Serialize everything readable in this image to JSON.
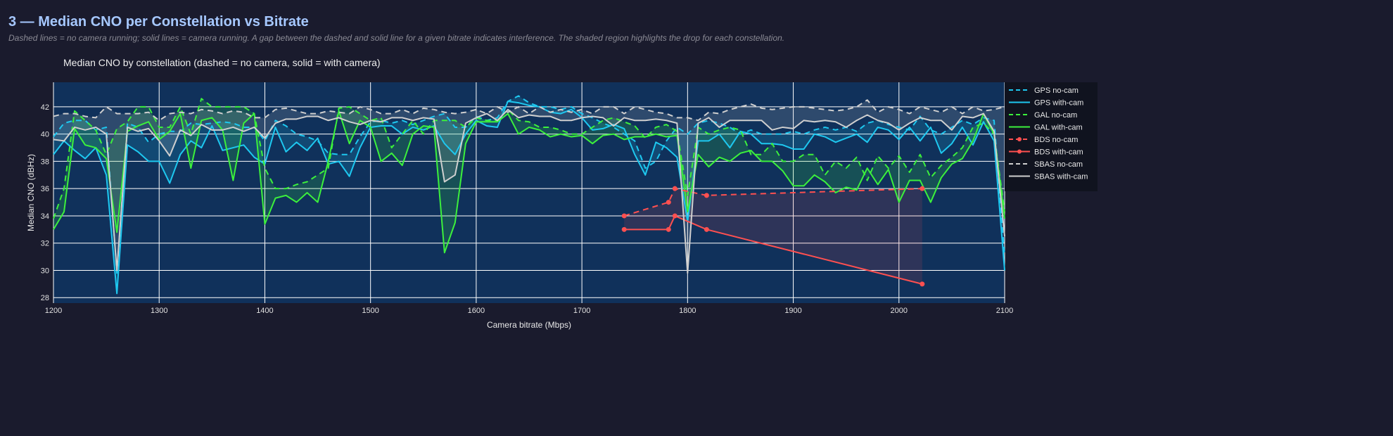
{
  "header": {
    "title": "3 — Median CNO per Constellation vs Bitrate",
    "subtitle": "Dashed lines = no camera running; solid lines = camera running. A gap between the dashed and solid line for a given bitrate indicates interference. The shaded region highlights the drop for each constellation."
  },
  "chart_data": {
    "type": "line",
    "title": "Median CNO by constellation  (dashed = no camera, solid = with camera)",
    "xlabel": "Camera bitrate (Mbps)",
    "ylabel": "Median CNO (dBHz)",
    "xlim": [
      1200,
      2100
    ],
    "ylim": [
      27.6,
      43.8
    ],
    "xticks": [
      1200,
      1300,
      1400,
      1500,
      1600,
      1700,
      1800,
      1900,
      2000,
      2100
    ],
    "yticks": [
      28,
      30,
      32,
      34,
      36,
      38,
      40,
      42
    ],
    "grid": true,
    "legend_position": "right",
    "x": [
      1200,
      1210,
      1220,
      1230,
      1240,
      1250,
      1260,
      1270,
      1280,
      1290,
      1300,
      1310,
      1320,
      1330,
      1340,
      1350,
      1360,
      1370,
      1380,
      1390,
      1400,
      1410,
      1420,
      1430,
      1440,
      1450,
      1460,
      1470,
      1480,
      1490,
      1500,
      1510,
      1520,
      1530,
      1540,
      1550,
      1560,
      1570,
      1580,
      1590,
      1600,
      1610,
      1620,
      1630,
      1640,
      1650,
      1660,
      1670,
      1680,
      1690,
      1700,
      1710,
      1720,
      1730,
      1740,
      1750,
      1760,
      1770,
      1780,
      1790,
      1800,
      1810,
      1820,
      1830,
      1840,
      1850,
      1860,
      1870,
      1880,
      1890,
      1900,
      1910,
      1920,
      1930,
      1940,
      1950,
      1960,
      1970,
      1980,
      1990,
      2000,
      2010,
      2020,
      2030,
      2040,
      2050,
      2060,
      2070,
      2080,
      2090,
      2100
    ],
    "series": [
      {
        "name": "GPS no-cam",
        "color": "#1ec8f0",
        "dash": true,
        "group": "GPS",
        "values": [
          39.8,
          40.8,
          41,
          41,
          40.3,
          40.5,
          29.8,
          40.8,
          40.5,
          39.4,
          40,
          40.2,
          40.2,
          40.8,
          40.7,
          40.8,
          40.9,
          40.8,
          40.5,
          40.5,
          39.5,
          41,
          40.6,
          40,
          39.8,
          39.5,
          38.6,
          38.5,
          38.5,
          39.8,
          40.9,
          41,
          40.8,
          41,
          40.7,
          41,
          41.3,
          41.5,
          40.5,
          40.5,
          41.3,
          41,
          41.2,
          42.4,
          42.8,
          42.3,
          42,
          42,
          41.8,
          42,
          41.5,
          41.2,
          40.8,
          40.5,
          40,
          39.5,
          37.5,
          38,
          39.5,
          40.5,
          40,
          40.8,
          41,
          40.8,
          40.5,
          40,
          40.3,
          40,
          40,
          40,
          40.2,
          40,
          40.3,
          40.5,
          40.3,
          40.5,
          40.2,
          40.8,
          41,
          40.7,
          40.5,
          40.3,
          41.3,
          40.3,
          40,
          40.5,
          41,
          40.7,
          41.2,
          41,
          31
        ]
      },
      {
        "name": "GPS with-cam",
        "color": "#1ec8f0",
        "dash": false,
        "group": "GPS",
        "values": [
          38.5,
          39.5,
          38.8,
          38.2,
          39,
          37,
          28.3,
          39.2,
          38.7,
          38,
          38,
          36.4,
          38.5,
          39.5,
          39,
          40.6,
          38.8,
          39,
          39.2,
          38.3,
          37.8,
          40.5,
          38.7,
          39.4,
          38.8,
          39.7,
          37.8,
          38,
          36.9,
          39,
          40.5,
          40.6,
          40.6,
          40,
          40.5,
          40.3,
          40.6,
          39.3,
          38.5,
          40,
          41,
          40.6,
          40.5,
          42.4,
          42.3,
          42.1,
          42,
          41.6,
          41.5,
          41.8,
          41.2,
          40.3,
          40.4,
          40.7,
          40.4,
          38.5,
          37,
          39.4,
          39,
          38.3,
          33.6,
          39.5,
          39.5,
          40,
          39,
          40.2,
          40,
          39.3,
          39.3,
          39.2,
          38.9,
          38.9,
          40,
          39.8,
          39.4,
          39.7,
          40,
          39.4,
          40.5,
          40.3,
          39.6,
          40.5,
          39.5,
          40.5,
          38.6,
          39.3,
          40.5,
          39.2,
          40.9,
          39.5,
          30
        ]
      },
      {
        "name": "GAL no-cam",
        "color": "#3cf03c",
        "dash": true,
        "group": "GAL",
        "values": [
          33.8,
          36,
          41.7,
          41,
          40.3,
          38.5,
          40.4,
          40.9,
          42,
          42,
          40.5,
          40.5,
          42,
          40,
          42.6,
          42,
          42,
          42,
          42,
          41.5,
          37.5,
          36,
          36,
          36.3,
          36.5,
          37,
          37.5,
          41.9,
          42,
          41.5,
          41,
          41.2,
          39,
          40,
          41,
          40,
          41,
          41,
          41,
          40.5,
          41.2,
          41,
          41,
          41.8,
          41,
          40.9,
          40.5,
          40.5,
          40.3,
          40,
          40,
          40.5,
          41,
          41.2,
          40.9,
          40.6,
          39.7,
          40.5,
          40.7,
          40.2,
          35.5,
          40.5,
          40,
          40.3,
          40.5,
          40.3,
          38.5,
          38.5,
          39.3,
          38,
          38,
          38.5,
          38.5,
          37,
          38,
          37.5,
          38.3,
          36.6,
          38.4,
          37.5,
          38.4,
          37.2,
          38.5,
          36.8,
          37.7,
          38.3,
          39,
          40.5,
          40.8,
          40,
          34.3
        ]
      },
      {
        "name": "GAL with-cam",
        "color": "#3cf03c",
        "dash": false,
        "group": "GAL",
        "values": [
          33,
          34.3,
          40.4,
          39.2,
          39,
          38.2,
          32.8,
          40.2,
          40.6,
          40.9,
          39.6,
          40.2,
          41.5,
          37.5,
          41,
          41.2,
          40.3,
          36.6,
          40.8,
          41.5,
          33.4,
          35.3,
          35.5,
          35,
          35.7,
          35,
          38,
          41.7,
          39.3,
          41,
          40.5,
          38,
          38.6,
          37.7,
          40,
          40.6,
          40.5,
          31.3,
          33.5,
          39.3,
          40.9,
          40.9,
          40.9,
          41.5,
          40,
          40.5,
          40.3,
          39.8,
          40,
          39.8,
          39.9,
          39.3,
          39.9,
          40,
          39.6,
          39.8,
          39.8,
          40,
          39.8,
          39.9,
          34.3,
          38.5,
          37.6,
          38.3,
          38,
          38.6,
          38.8,
          38,
          38,
          37.3,
          36.2,
          36.2,
          37,
          36.5,
          35.7,
          36.1,
          35.9,
          37.5,
          36.3,
          37.4,
          35,
          36.6,
          36.6,
          35,
          36.8,
          37.8,
          38.2,
          39.5,
          41.5,
          40,
          33.8
        ]
      },
      {
        "name": "BDS no-cam",
        "color": "#ff5050",
        "dash": true,
        "markers": true,
        "group": "BDS",
        "x": [
          1740,
          1782,
          1788,
          1818,
          2022
        ],
        "values": [
          34,
          35,
          36,
          35.5,
          36
        ]
      },
      {
        "name": "BDS with-cam",
        "color": "#ff5050",
        "dash": false,
        "markers": true,
        "group": "BDS",
        "x": [
          1740,
          1782,
          1788,
          1818,
          2022
        ],
        "values": [
          33,
          33,
          34,
          33,
          29
        ]
      },
      {
        "name": "SBAS no-cam",
        "color": "#cfcfcf",
        "dash": true,
        "group": "SBAS",
        "values": [
          41.3,
          41.5,
          41.5,
          41.3,
          41.2,
          42,
          41.5,
          41.5,
          41.5,
          41.6,
          41,
          41.5,
          41.6,
          41.5,
          41.8,
          41.7,
          41.5,
          41.7,
          41.6,
          41.2,
          41.2,
          41.8,
          41.9,
          41.7,
          41.5,
          41.5,
          41.7,
          41.6,
          41.5,
          42,
          41.8,
          41.5,
          41.5,
          41.8,
          41.5,
          41.9,
          41.8,
          41.6,
          41.5,
          41.6,
          41.8,
          41.5,
          42,
          41.6,
          42,
          41.5,
          42,
          41.6,
          41.8,
          41.6,
          41.8,
          41.5,
          42,
          42,
          41.5,
          42,
          41.8,
          41.6,
          41.5,
          41.2,
          41.2,
          41,
          41.6,
          41.5,
          41.8,
          42,
          42.2,
          41.9,
          41.8,
          41.9,
          42,
          42,
          41.9,
          41.8,
          41.7,
          41.8,
          42,
          42.5,
          41.6,
          42,
          41.8,
          41.5,
          42,
          41.8,
          41.6,
          42,
          41.5,
          42,
          41.7,
          41.8,
          42
        ]
      },
      {
        "name": "SBAS with-cam",
        "color": "#cfcfcf",
        "dash": false,
        "group": "SBAS",
        "values": [
          39.6,
          39.5,
          40.5,
          40.3,
          40.5,
          40,
          30,
          40.5,
          40.2,
          40.4,
          39.5,
          38.4,
          40.3,
          39.9,
          40.7,
          40.3,
          40.3,
          40.5,
          40.2,
          40.5,
          39.7,
          40.8,
          41.1,
          41.1,
          41.3,
          41.3,
          41,
          41.2,
          40.9,
          40.7,
          41,
          40.9,
          41.2,
          41.2,
          41,
          41.2,
          41.1,
          36.5,
          37,
          40.8,
          41.2,
          41.5,
          41,
          41.8,
          41.2,
          41.4,
          41.3,
          41.3,
          41,
          41,
          41.2,
          41.3,
          41.2,
          40.6,
          41.2,
          41,
          41,
          41.1,
          41,
          40.8,
          29.8,
          40.8,
          41.2,
          40.5,
          41,
          41,
          41,
          41,
          40.3,
          40.5,
          40.4,
          41,
          40.9,
          41,
          40.9,
          40.5,
          41,
          41.4,
          41,
          40.8,
          40.3,
          40.8,
          41.2,
          41,
          41,
          40.3,
          41.3,
          41.2,
          41.5,
          40.2,
          32.5
        ]
      }
    ]
  },
  "colors": {
    "page_bg": "#1a1b2d",
    "plot_bg": "#10315b",
    "legend_bg": "#10131f",
    "title": "#a6c8ff"
  }
}
